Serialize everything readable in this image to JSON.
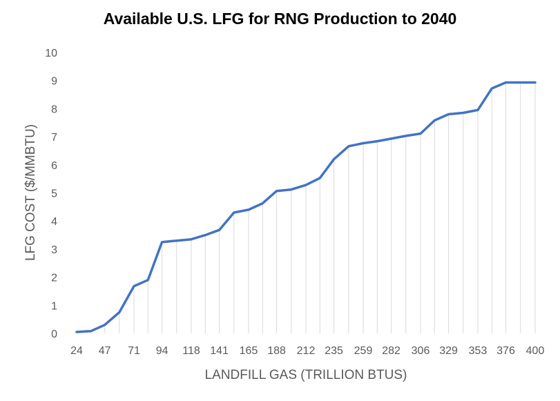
{
  "chart_data": {
    "type": "area",
    "title": "Available U.S. LFG for RNG Production to 2040",
    "xlabel": "LANDFILL GAS (TRILLION BTUS)",
    "ylabel": "LFG COST ($/MMBTU)",
    "ylim": [
      0,
      10
    ],
    "yticks": [
      "0",
      "1",
      "2",
      "3",
      "4",
      "5",
      "6",
      "7",
      "8",
      "9",
      "10"
    ],
    "x_tick_labels": [
      "24",
      "47",
      "71",
      "94",
      "118",
      "141",
      "165",
      "188",
      "212",
      "235",
      "259",
      "282",
      "306",
      "329",
      "353",
      "376",
      "400"
    ],
    "x": [
      24,
      35.75,
      47,
      59,
      71,
      82.5,
      94,
      106,
      118,
      129.5,
      141,
      153,
      165,
      176.5,
      188,
      200,
      212,
      223.5,
      235,
      247,
      259,
      270.5,
      282,
      294,
      306,
      317.5,
      329,
      341,
      353,
      364.5,
      376,
      388,
      400
    ],
    "series": [
      {
        "values": [
          0.05,
          0.08,
          0.3,
          0.75,
          1.68,
          1.9,
          3.25,
          3.3,
          3.35,
          3.5,
          3.68,
          4.3,
          4.4,
          4.63,
          5.07,
          5.12,
          5.28,
          5.53,
          6.2,
          6.66,
          6.77,
          6.84,
          6.93,
          7.03,
          7.11,
          7.58,
          7.8,
          7.85,
          7.95,
          8.72,
          8.93,
          8.93,
          8.93
        ]
      }
    ],
    "grid": false,
    "drop_lines": true,
    "colors": {
      "line": "#4472C4",
      "drop_lines": "#D9D9D9",
      "text": "#595959"
    }
  }
}
